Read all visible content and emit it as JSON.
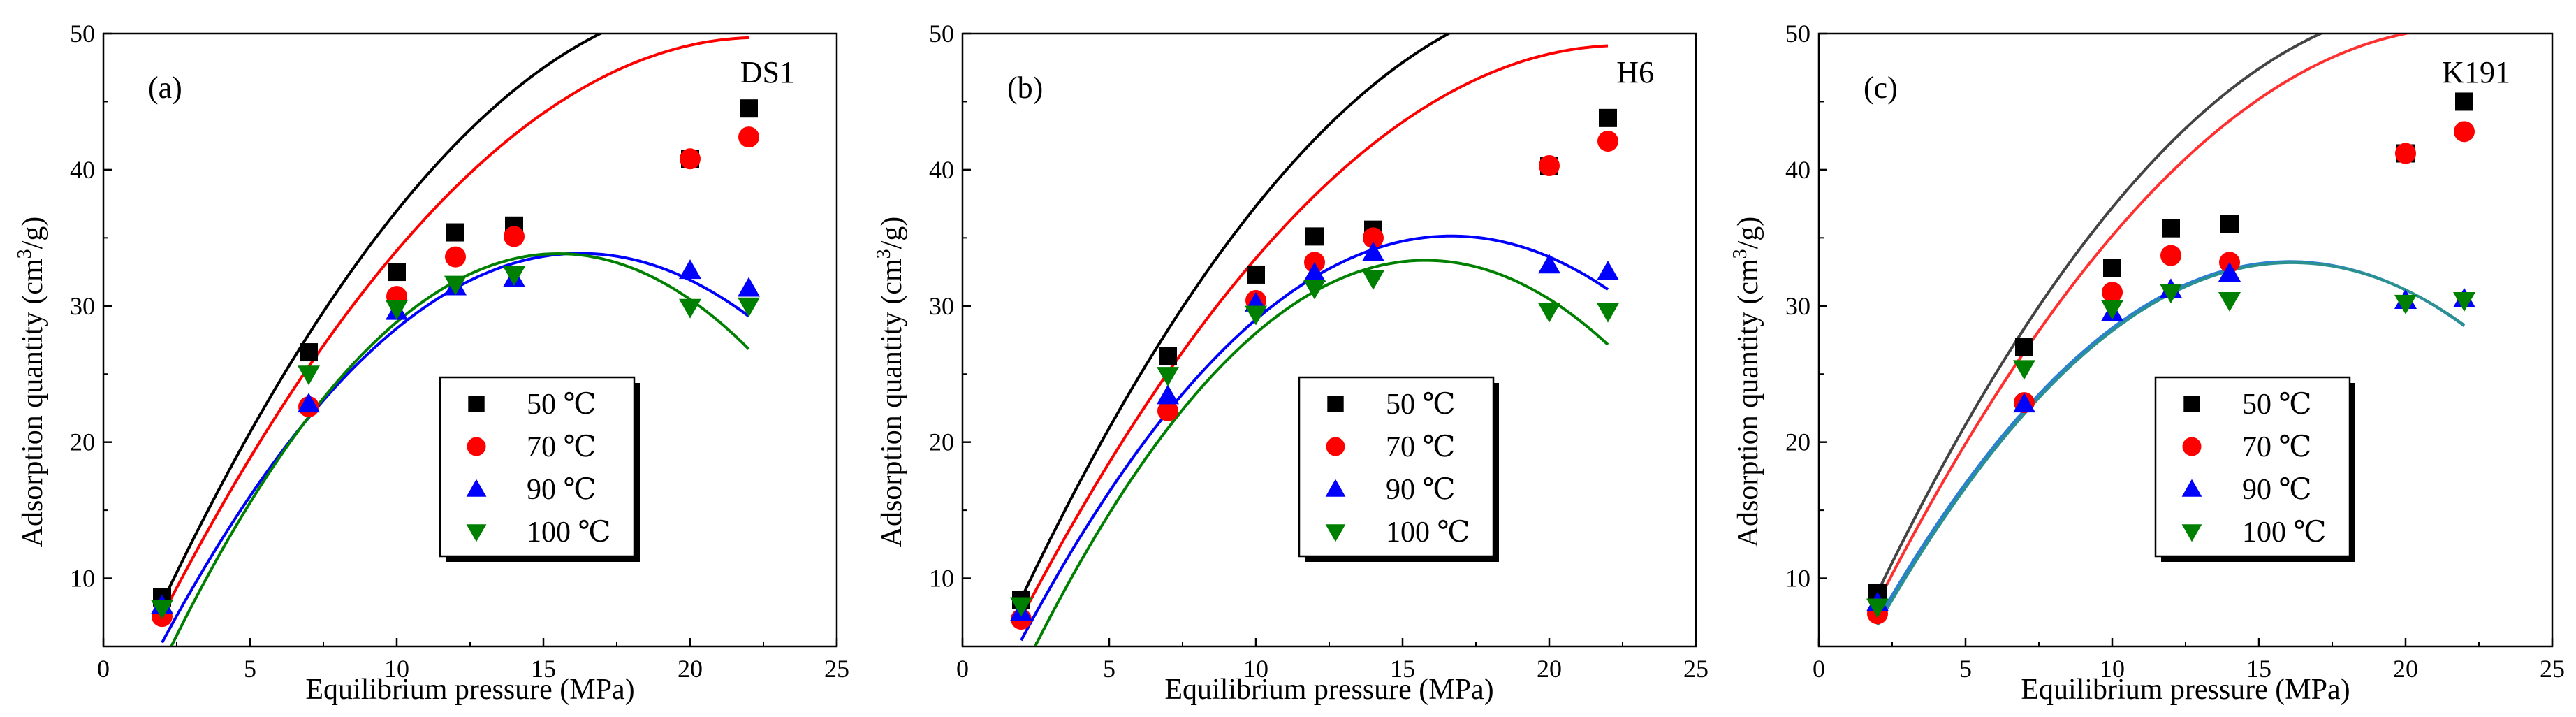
{
  "figure": {
    "panels": [
      "(a)",
      "(b)",
      "(c)"
    ]
  },
  "chart_data": [
    {
      "type": "scatter",
      "panel_label": "(a)",
      "sample": "DS1",
      "xlabel": "Equilibrium pressure (MPa)",
      "ylabel_prefix": "Adsorption quantity (cm",
      "ylabel_sup": "3",
      "ylabel_suffix": "/g)",
      "xlim": [
        0,
        25
      ],
      "ylim": [
        5,
        50
      ],
      "xticks": [
        0,
        5,
        10,
        15,
        20,
        25
      ],
      "yticks": [
        10,
        20,
        30,
        40,
        50
      ],
      "legend_position": "bottom-center",
      "x": [
        2,
        7,
        10,
        12,
        14,
        20,
        22
      ],
      "series": [
        {
          "name": "50 ℃",
          "marker": "square",
          "color": "#000000",
          "fit_color": "#000000",
          "values": [
            8.6,
            26.6,
            32.5,
            35.4,
            35.9,
            40.8,
            44.5
          ],
          "fit": [
            -0.1152,
            4.98,
            -1.3
          ]
        },
        {
          "name": "70 ℃",
          "marker": "circle",
          "color": "#ff0000",
          "fit_color": "#ff0000",
          "values": [
            7.2,
            22.6,
            30.7,
            33.6,
            35.1,
            40.8,
            42.4
          ],
          "fit": [
            -0.1024,
            4.58,
            -1.5
          ]
        },
        {
          "name": "90 ℃",
          "marker": "triangle-up",
          "color": "#0000ff",
          "fit_color": "#0000ff",
          "values": [
            8.0,
            22.8,
            29.6,
            31.4,
            32.0,
            32.6,
            31.3
          ],
          "fit": [
            -0.1405,
            4.57,
            -3.3
          ]
        },
        {
          "name": "100 ℃",
          "marker": "triangle-down",
          "color": "#008000",
          "fit_color": "#008000",
          "values": [
            7.8,
            25.0,
            29.8,
            31.6,
            32.3,
            29.9,
            30.0
          ],
          "fit": [
            -0.1658,
            5.14,
            -6.0
          ]
        }
      ]
    },
    {
      "type": "scatter",
      "panel_label": "(b)",
      "sample": "H6",
      "xlabel": "Equilibrium pressure (MPa)",
      "ylabel_prefix": "Adsorption quantity (cm",
      "ylabel_sup": "3",
      "ylabel_suffix": "/g)",
      "xlim": [
        0,
        25
      ],
      "ylim": [
        5,
        50
      ],
      "xticks": [
        0,
        5,
        10,
        15,
        20,
        25
      ],
      "yticks": [
        10,
        20,
        30,
        40,
        50
      ],
      "legend_position": "bottom-right",
      "x": [
        2,
        7,
        10,
        12,
        14,
        20,
        22
      ],
      "series": [
        {
          "name": "50 ℃",
          "marker": "square",
          "color": "#000000",
          "fit_color": "#000000",
          "values": [
            8.4,
            26.3,
            32.3,
            35.1,
            35.6,
            40.3,
            43.8
          ],
          "fit": [
            -0.1148,
            4.98,
            -1.0
          ]
        },
        {
          "name": "70 ℃",
          "marker": "circle",
          "color": "#ff0000",
          "fit_color": "#ff0000",
          "values": [
            7.0,
            22.3,
            30.4,
            33.2,
            35.0,
            40.3,
            42.1
          ],
          "fit": [
            -0.1,
            4.5,
            -1.5
          ]
        },
        {
          "name": "90 ℃",
          "marker": "triangle-up",
          "color": "#0000ff",
          "fit_color": "#0000ff",
          "values": [
            7.5,
            23.4,
            30.2,
            32.4,
            33.9,
            33.0,
            32.5
          ],
          "fit": [
            -0.138,
            4.6,
            -3.2
          ]
        },
        {
          "name": "100 ℃",
          "marker": "triangle-down",
          "color": "#008000",
          "fit_color": "#008000",
          "values": [
            8.0,
            24.9,
            29.4,
            31.3,
            32.0,
            29.6,
            29.6
          ],
          "fit": [
            -0.16,
            5.05,
            -6.5
          ]
        }
      ]
    },
    {
      "type": "scatter",
      "panel_label": "(c)",
      "sample": "K191",
      "xlabel": "Equilibrium pressure (MPa)",
      "ylabel_prefix": "Adsorption quantity (cm",
      "ylabel_sup": "3",
      "ylabel_suffix": "/g)",
      "xlim": [
        0,
        25
      ],
      "ylim": [
        5,
        50
      ],
      "xticks": [
        0,
        5,
        10,
        15,
        20,
        25
      ],
      "yticks": [
        10,
        20,
        30,
        40,
        50
      ],
      "legend_position": "bottom-right",
      "x": [
        2,
        7,
        10,
        12,
        14,
        20,
        22
      ],
      "series": [
        {
          "name": "50 ℃",
          "marker": "square",
          "color": "#000000",
          "fit_color": "#444444",
          "values": [
            8.9,
            27.0,
            32.8,
            35.7,
            36.0,
            41.2,
            45.0
          ],
          "fit": [
            -0.1148,
            4.91,
            -0.4
          ]
        },
        {
          "name": "70 ℃",
          "marker": "circle",
          "color": "#ff0000",
          "fit_color": "#ff3030",
          "values": [
            7.4,
            22.9,
            31.0,
            33.7,
            33.2,
            41.2,
            42.8
          ],
          "fit": [
            -0.1045,
            4.62,
            -0.6
          ]
        },
        {
          "name": "90 ℃",
          "marker": "triangle-up",
          "color": "#0000ff",
          "fit_color": "#2a7fd4",
          "values": [
            8.2,
            22.8,
            29.5,
            31.2,
            32.4,
            30.4,
            30.5
          ],
          "fit": [
            -0.1333,
            4.28,
            -1.1
          ]
        },
        {
          "name": "100 ℃",
          "marker": "triangle-down",
          "color": "#008000",
          "fit_color": "#2a9090",
          "values": [
            7.9,
            25.4,
            29.8,
            31.0,
            30.4,
            30.2,
            30.4
          ],
          "fit": [
            -0.1333,
            4.3,
            -1.5
          ]
        }
      ]
    }
  ]
}
